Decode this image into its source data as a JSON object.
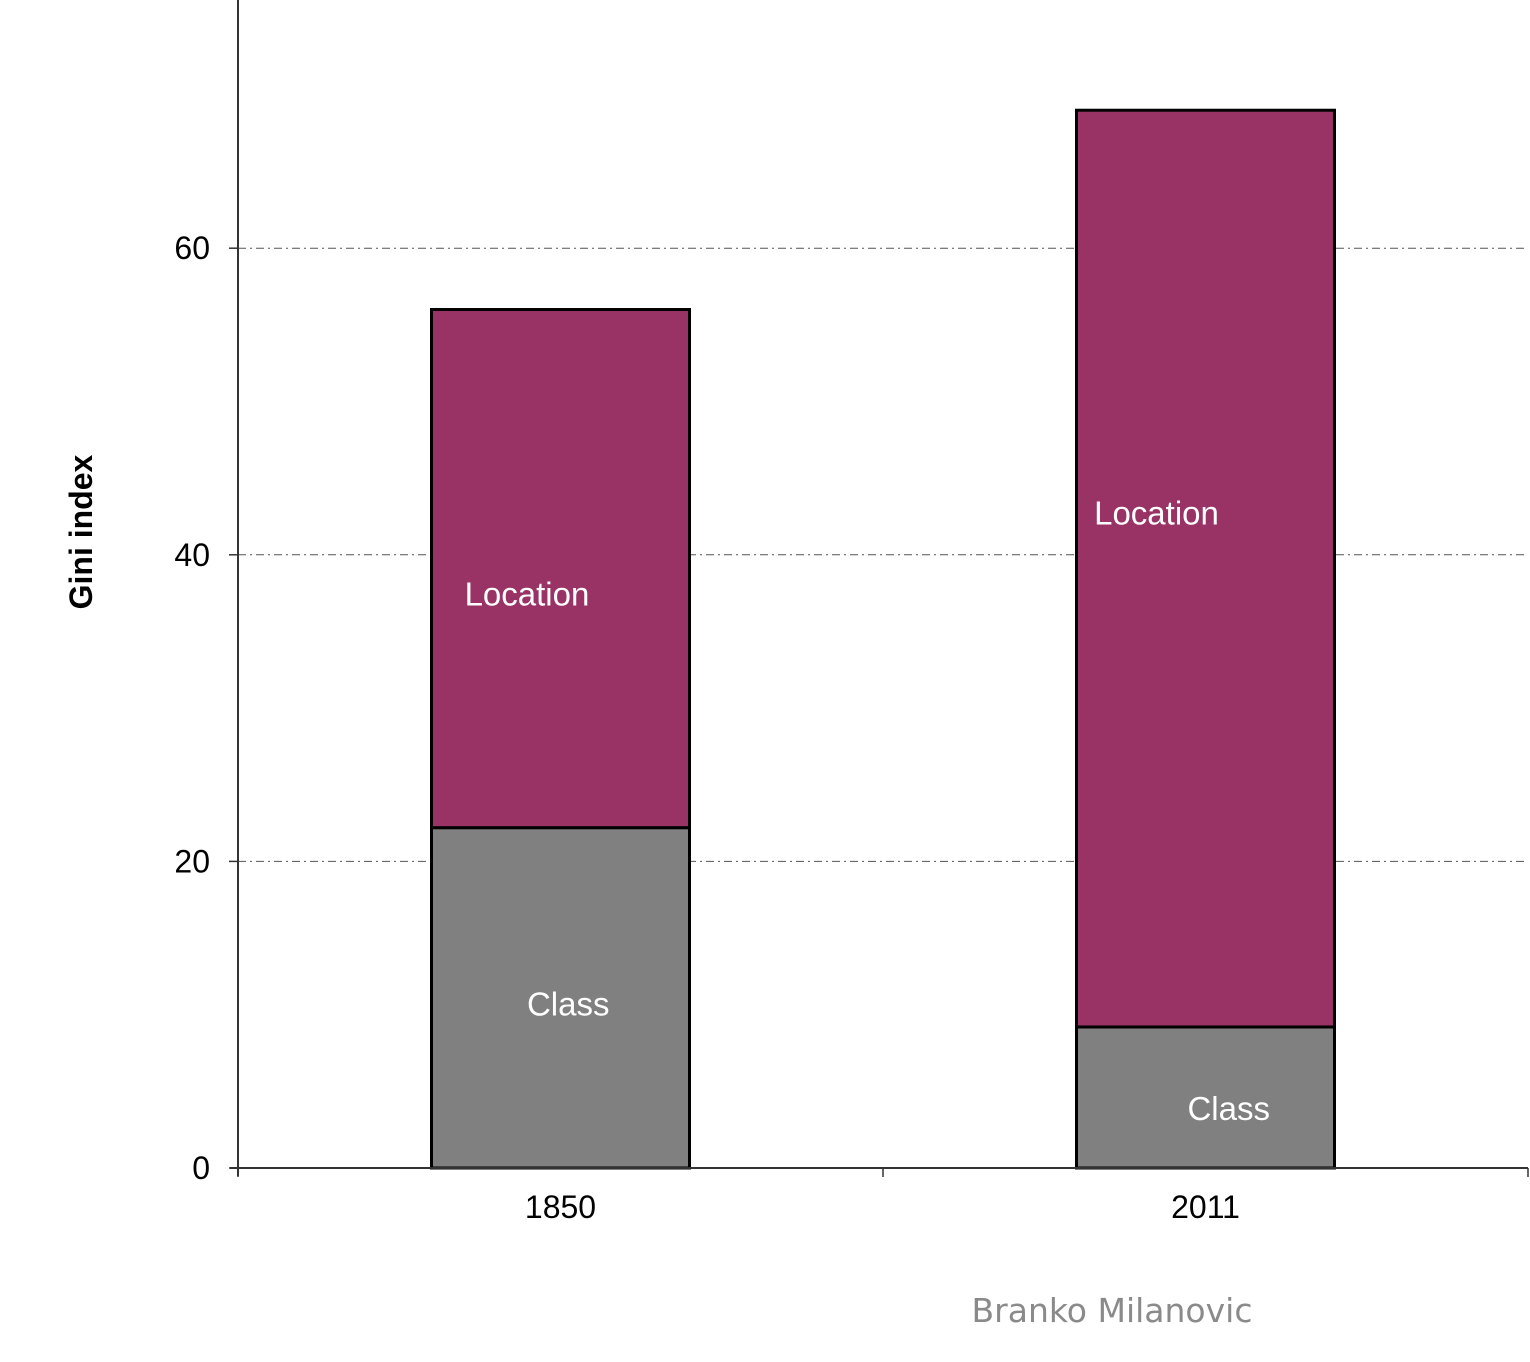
{
  "chart_data": {
    "type": "bar",
    "stacked": true,
    "categories": [
      "1850",
      "2011"
    ],
    "series": [
      {
        "name": "Class",
        "values": [
          22.2,
          9.2
        ],
        "color": "#808080"
      },
      {
        "name": "Location",
        "values": [
          33.8,
          59.8
        ],
        "color": "#993366"
      }
    ],
    "segment_labels": [
      [
        "Class",
        "Location"
      ],
      [
        "Class",
        "Location"
      ]
    ],
    "title": "",
    "xlabel": "",
    "ylabel": "Gini index",
    "ylim": [
      0,
      76
    ],
    "yticks": [
      0,
      20,
      40,
      60
    ],
    "ytick_labels": [
      "0",
      "20",
      "40",
      "60"
    ],
    "grid": true,
    "legend": "none",
    "credit": "Branko Milanovic"
  }
}
